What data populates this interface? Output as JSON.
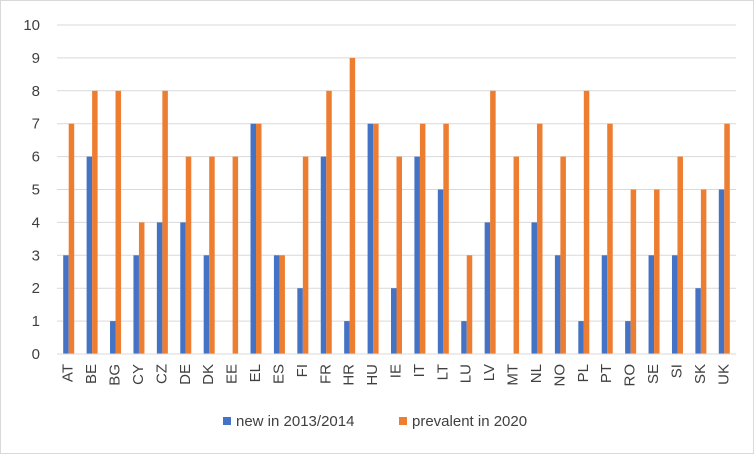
{
  "chart_data": {
    "type": "bar",
    "categories": [
      "AT",
      "BE",
      "BG",
      "CY",
      "CZ",
      "DE",
      "DK",
      "EE",
      "EL",
      "ES",
      "FI",
      "FR",
      "HR",
      "HU",
      "IE",
      "IT",
      "LT",
      "LU",
      "LV",
      "MT",
      "NL",
      "NO",
      "PL",
      "PT",
      "RO",
      "SE",
      "SI",
      "SK",
      "UK"
    ],
    "series": [
      {
        "name": "new in 2013/2014",
        "color": "#4472C4",
        "values": [
          3,
          6,
          1,
          3,
          4,
          4,
          3,
          0,
          7,
          3,
          2,
          6,
          1,
          7,
          2,
          6,
          5,
          1,
          4,
          0,
          4,
          3,
          1,
          3,
          1,
          3,
          3,
          2,
          5
        ]
      },
      {
        "name": "prevalent in 2020",
        "color": "#ED7D31",
        "values": [
          7,
          8,
          8,
          4,
          8,
          6,
          6,
          6,
          7,
          3,
          6,
          8,
          9,
          7,
          6,
          7,
          7,
          3,
          8,
          6,
          7,
          6,
          8,
          7,
          5,
          5,
          6,
          5,
          7
        ]
      }
    ],
    "y_ticks": [
      "0",
      "1",
      "2",
      "3",
      "4",
      "5",
      "6",
      "7",
      "8",
      "9",
      "10"
    ],
    "ylim": [
      0,
      10
    ],
    "grid": true,
    "legend_position": "bottom",
    "title": "",
    "xlabel": "",
    "ylabel": ""
  }
}
